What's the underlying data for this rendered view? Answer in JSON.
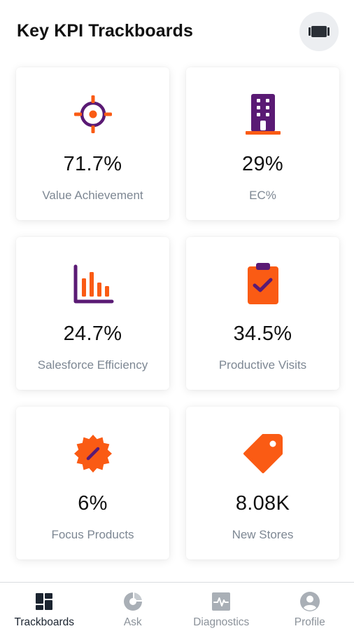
{
  "header": {
    "title": "Key KPI Trackboards",
    "action_icon": "film-strip-icon"
  },
  "colors": {
    "orange": "#fa5b14",
    "purple": "#5a1a74",
    "nav_active": "#1b2430",
    "nav_inactive": "#a9afb6"
  },
  "cards": [
    {
      "value": "71.7%",
      "label": "Value Achievement",
      "icon": "target-icon"
    },
    {
      "value": "29%",
      "label": "EC%",
      "icon": "building-icon"
    },
    {
      "value": "24.7%",
      "label": "Salesforce Efficiency",
      "icon": "bar-chart-icon"
    },
    {
      "value": "34.5%",
      "label": "Productive Visits",
      "icon": "clipboard-check-icon"
    },
    {
      "value": "6%",
      "label": "Focus Products",
      "icon": "discount-badge-icon"
    },
    {
      "value": "8.08K",
      "label": "New Stores",
      "icon": "price-tag-icon"
    }
  ],
  "nav": {
    "items": [
      {
        "label": "Trackboards",
        "icon": "dashboard-icon",
        "active": true
      },
      {
        "label": "Ask",
        "icon": "ask-icon",
        "active": false
      },
      {
        "label": "Diagnostics",
        "icon": "pulse-icon",
        "active": false
      },
      {
        "label": "Profile",
        "icon": "profile-icon",
        "active": false
      }
    ]
  }
}
